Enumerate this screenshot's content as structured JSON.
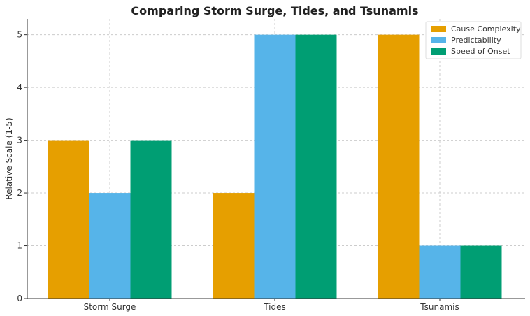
{
  "chart_data": {
    "type": "bar",
    "title": "Comparing Storm Surge, Tides, and Tsunamis",
    "xlabel": "",
    "ylabel": "Relative Scale (1-5)",
    "categories": [
      "Storm Surge",
      "Tides",
      "Tsunamis"
    ],
    "series": [
      {
        "name": "Cause Complexity",
        "values": [
          3,
          2,
          5
        ],
        "color": "#E69F00"
      },
      {
        "name": "Predictability",
        "values": [
          2,
          5,
          1
        ],
        "color": "#56B4E9"
      },
      {
        "name": "Speed of Onset",
        "values": [
          3,
          5,
          1
        ],
        "color": "#009E73"
      }
    ],
    "ylim": [
      0,
      5.3
    ],
    "yticks": [
      0,
      1,
      2,
      3,
      4,
      5
    ],
    "grid": true,
    "legend_position": "top-right"
  }
}
